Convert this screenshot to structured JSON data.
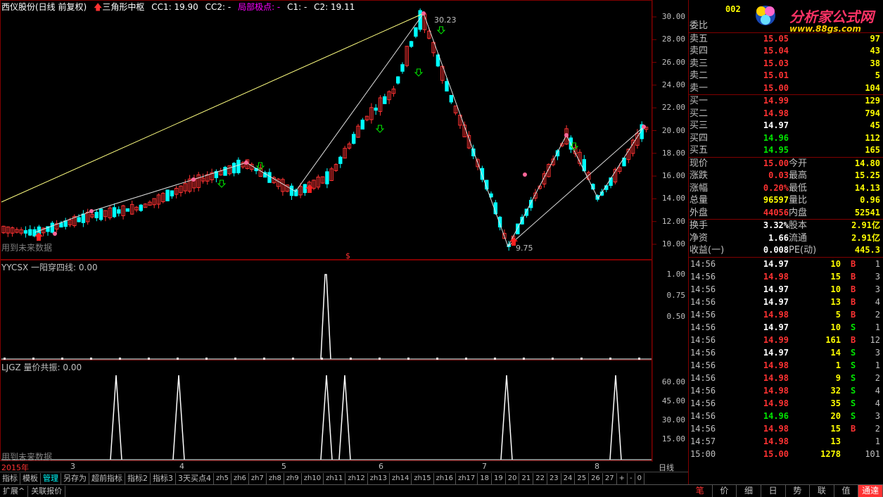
{
  "header": {
    "stock_name": "西仪股份(日线 前复权)",
    "indicator_name": "三角形中枢",
    "cc1": "CC1: 19.90",
    "cc2": "CC2: -",
    "local_extreme": "局部极点: -",
    "c1": "C1: -",
    "c2": "C2: 19.11"
  },
  "price_axis": [
    "30.00",
    "28.00",
    "26.00",
    "24.00",
    "22.00",
    "20.00",
    "18.00",
    "16.00",
    "14.00",
    "12.00",
    "10.00"
  ],
  "main_labels": {
    "peak": "30.23",
    "low": "9.75",
    "future_note": "用到未来数据",
    "s_mark": "$"
  },
  "panel2": {
    "title": "YYCSX 一阳穿四线: 0.00",
    "axis": [
      "1.00",
      "0.75",
      "0.50"
    ]
  },
  "panel3": {
    "title": "LJGZ 量价共振: 0.00",
    "axis": [
      "60.00",
      "45.00",
      "30.00",
      "15.00"
    ],
    "future_note": "用到未来数据"
  },
  "dates": [
    "2015年",
    "3",
    "4",
    "5",
    "6",
    "7",
    "8"
  ],
  "date_label": "日线",
  "tabs": [
    "指标",
    "模板",
    "管理",
    "另存为",
    "超前指标",
    "指标2",
    "指标3",
    "3天买点4",
    "zh5",
    "zh6",
    "zh7",
    "zh8",
    "zh9",
    "zh10",
    "zh11",
    "zh12",
    "zh13",
    "zh14",
    "zh15",
    "zh16",
    "zh17",
    "18",
    "19",
    "20",
    "21",
    "22",
    "23",
    "24",
    "25",
    "26",
    "27",
    "+",
    "-",
    "0"
  ],
  "status": [
    "扩展^",
    "关联报价"
  ],
  "logo": {
    "code": "002",
    "site_title": "分析家公式网",
    "site_url": "www.88gs.com"
  },
  "right_panel": {
    "weibi": "委比",
    "asks": [
      {
        "label": "卖五",
        "price": "15.05",
        "vol": "97"
      },
      {
        "label": "卖四",
        "price": "15.04",
        "vol": "43"
      },
      {
        "label": "卖三",
        "price": "15.03",
        "vol": "38"
      },
      {
        "label": "卖二",
        "price": "15.01",
        "vol": "5"
      },
      {
        "label": "卖一",
        "price": "15.00",
        "vol": "104"
      }
    ],
    "bids": [
      {
        "label": "买一",
        "price": "14.99",
        "vol": "129",
        "color": "red"
      },
      {
        "label": "买二",
        "price": "14.98",
        "vol": "794",
        "color": "red"
      },
      {
        "label": "买三",
        "price": "14.97",
        "vol": "45",
        "color": "white"
      },
      {
        "label": "买四",
        "price": "14.96",
        "vol": "112",
        "color": "green"
      },
      {
        "label": "买五",
        "price": "14.95",
        "vol": "165",
        "color": "green"
      }
    ],
    "quote": [
      {
        "l": "现价",
        "m": "15.00",
        "mc": "red",
        "l2": "今开",
        "r": "14.80",
        "rc": "green"
      },
      {
        "l": "涨跌",
        "m": "0.03",
        "mc": "red",
        "l2": "最高",
        "r": "15.25",
        "rc": "red"
      },
      {
        "l": "涨幅",
        "m": "0.20%",
        "mc": "red",
        "l2": "最低",
        "r": "14.13",
        "rc": "green"
      },
      {
        "l": "总量",
        "m": "96597",
        "mc": "yellow",
        "l2": "量比",
        "r": "0.96",
        "rc": "yellow"
      },
      {
        "l": "外盘",
        "m": "44056",
        "mc": "red",
        "l2": "内盘",
        "r": "52541",
        "rc": "green"
      }
    ],
    "fund": [
      {
        "l": "换手",
        "m": "3.32%",
        "l2": "股本",
        "r": "2.91亿"
      },
      {
        "l": "净资",
        "m": "1.66",
        "l2": "流通",
        "r": "2.91亿"
      },
      {
        "l": "收益(一)",
        "m": "0.008",
        "l2": "PE(动)",
        "r": "445.3"
      }
    ],
    "ticks": [
      {
        "t": "14:56",
        "p": "14.97",
        "pc": "white",
        "v": "10",
        "d": "B",
        "dc": "red",
        "n": "1"
      },
      {
        "t": "14:56",
        "p": "14.98",
        "pc": "red",
        "v": "15",
        "d": "B",
        "dc": "red",
        "n": "3"
      },
      {
        "t": "14:56",
        "p": "14.97",
        "pc": "white",
        "v": "10",
        "d": "B",
        "dc": "red",
        "n": "3"
      },
      {
        "t": "14:56",
        "p": "14.97",
        "pc": "white",
        "v": "13",
        "d": "B",
        "dc": "red",
        "n": "4"
      },
      {
        "t": "14:56",
        "p": "14.98",
        "pc": "red",
        "v": "5",
        "d": "B",
        "dc": "red",
        "n": "2"
      },
      {
        "t": "14:56",
        "p": "14.97",
        "pc": "white",
        "v": "10",
        "d": "S",
        "dc": "green",
        "n": "1"
      },
      {
        "t": "14:56",
        "p": "14.99",
        "pc": "red",
        "v": "161",
        "d": "B",
        "dc": "red",
        "n": "12"
      },
      {
        "t": "14:56",
        "p": "14.97",
        "pc": "white",
        "v": "14",
        "d": "S",
        "dc": "green",
        "n": "3"
      },
      {
        "t": "14:56",
        "p": "14.98",
        "pc": "red",
        "v": "1",
        "d": "S",
        "dc": "green",
        "n": "1"
      },
      {
        "t": "14:56",
        "p": "14.98",
        "pc": "red",
        "v": "9",
        "d": "S",
        "dc": "green",
        "n": "2"
      },
      {
        "t": "14:56",
        "p": "14.98",
        "pc": "red",
        "v": "32",
        "d": "S",
        "dc": "green",
        "n": "4"
      },
      {
        "t": "14:56",
        "p": "14.98",
        "pc": "red",
        "v": "35",
        "d": "S",
        "dc": "green",
        "n": "4"
      },
      {
        "t": "14:56",
        "p": "14.96",
        "pc": "green",
        "v": "20",
        "d": "S",
        "dc": "green",
        "n": "3"
      },
      {
        "t": "14:56",
        "p": "14.98",
        "pc": "red",
        "v": "15",
        "d": "B",
        "dc": "red",
        "n": "2"
      },
      {
        "t": "14:57",
        "p": "14.98",
        "pc": "red",
        "v": "13",
        "d": "",
        "dc": "red",
        "n": "1"
      },
      {
        "t": "15:00",
        "p": "15.00",
        "pc": "red",
        "v": "1278",
        "d": "",
        "dc": "red",
        "n": "101"
      }
    ],
    "bottom_tabs": [
      "笔",
      "价",
      "细",
      "日",
      "势",
      "联",
      "值",
      "通達信"
    ]
  },
  "colors": {
    "up": "#ff3232",
    "down": "#00ffff",
    "border": "#800000",
    "yellow_line": "#ffff80"
  }
}
